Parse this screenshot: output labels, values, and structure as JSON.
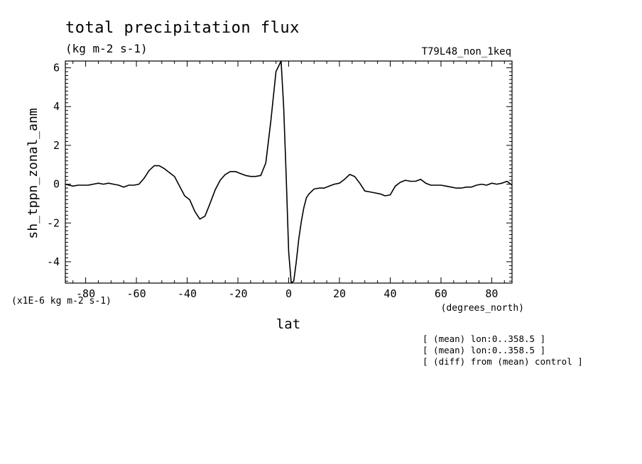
{
  "chart_data": {
    "type": "line",
    "title": "total precipitation flux",
    "units": "(kg m-2 s-1)",
    "run_label": "T79L48_non_1keq",
    "ylabel": "sh_tppn_zonal_anm",
    "xlabel": "lat",
    "xunits": "(degrees_north)",
    "yscale_note": "(x1E-6 kg m-2 s-1)",
    "xlim": [
      -88,
      88
    ],
    "ylim": [
      -5.1,
      6.35
    ],
    "xticks": [
      -80,
      -60,
      -40,
      -20,
      0,
      20,
      40,
      60,
      80
    ],
    "yticks": [
      -4,
      -2,
      0,
      2,
      4,
      6
    ],
    "xtick_labels": [
      "-80",
      "-60",
      "-40",
      "-20",
      "0",
      "20",
      "40",
      "60",
      "80"
    ],
    "ytick_labels": [
      "-4",
      "-2",
      "0",
      "2",
      "4",
      "6"
    ],
    "notes": [
      "[ (mean) lon:0..358.5 ]",
      "[ (mean) lon:0..358.5 ]",
      "[ (diff) from (mean) control ]"
    ],
    "x": [
      -88,
      -86.5,
      -85,
      -83,
      -81,
      -79,
      -77,
      -75,
      -73,
      -71,
      -69,
      -67,
      -65,
      -63,
      -61,
      -59,
      -57,
      -55,
      -53,
      -51,
      -49,
      -47,
      -45,
      -43,
      -41,
      -39,
      -37,
      -35,
      -33,
      -31,
      -29,
      -27,
      -25,
      -23,
      -21,
      -19,
      -17,
      -15,
      -13,
      -11,
      -9,
      -7,
      -5,
      -3,
      -2,
      -1,
      0,
      1,
      2,
      3,
      4,
      5,
      6,
      7,
      8,
      10,
      12,
      14,
      16,
      18,
      20,
      22,
      24,
      26,
      28,
      30,
      32,
      34,
      36,
      38,
      40,
      42,
      44,
      46,
      48,
      50,
      52,
      54,
      56,
      58,
      60,
      62,
      64,
      66,
      68,
      70,
      72,
      74,
      76,
      78,
      80,
      82,
      84,
      86,
      88
    ],
    "series": [
      {
        "values": [
          0.0,
          -0.05,
          -0.1,
          -0.05,
          -0.05,
          -0.05,
          0.0,
          0.05,
          0.0,
          0.05,
          0.0,
          -0.05,
          -0.15,
          -0.05,
          -0.05,
          0.0,
          0.3,
          0.7,
          0.95,
          0.95,
          0.8,
          0.6,
          0.4,
          -0.1,
          -0.6,
          -0.8,
          -1.4,
          -1.8,
          -1.65,
          -1.0,
          -0.3,
          0.2,
          0.5,
          0.65,
          0.65,
          0.55,
          0.45,
          0.4,
          0.4,
          0.45,
          1.1,
          3.3,
          5.8,
          6.35,
          4.0,
          0.5,
          -3.5,
          -5.1,
          -5.0,
          -4.0,
          -2.8,
          -1.9,
          -1.2,
          -0.7,
          -0.5,
          -0.25,
          -0.2,
          -0.2,
          -0.1,
          0.0,
          0.05,
          0.25,
          0.5,
          0.4,
          0.05,
          -0.35,
          -0.4,
          -0.45,
          -0.5,
          -0.6,
          -0.55,
          -0.1,
          0.1,
          0.2,
          0.15,
          0.15,
          0.25,
          0.05,
          -0.05,
          -0.05,
          -0.05,
          -0.1,
          -0.15,
          -0.2,
          -0.2,
          -0.15,
          -0.15,
          -0.05,
          0.0,
          -0.05,
          0.05,
          0.0,
          0.05,
          0.15,
          -0.05
        ]
      }
    ],
    "grid": false
  }
}
